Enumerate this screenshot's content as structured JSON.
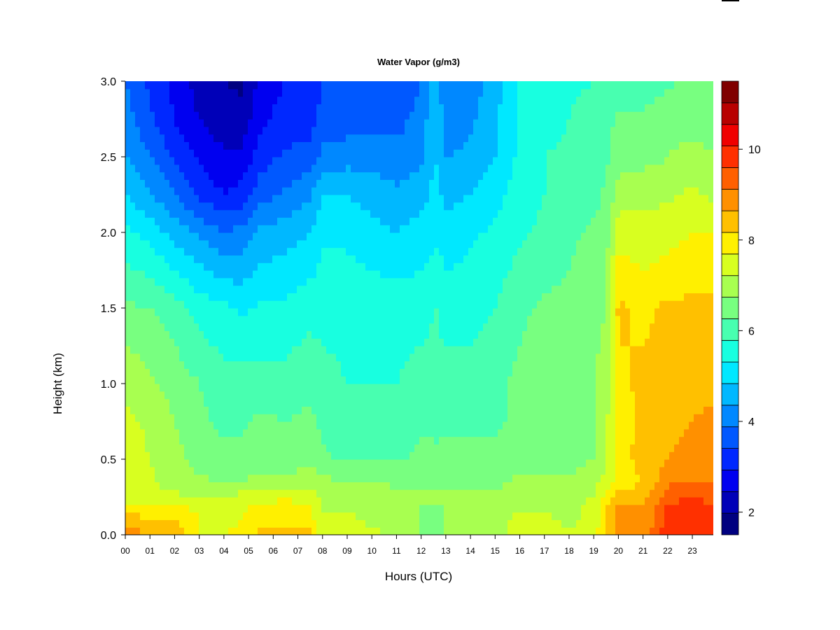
{
  "chart_data": {
    "type": "heatmap",
    "title": "Water Vapor (g/m3)",
    "xlabel": "Hours (UTC)",
    "ylabel": "Height (km)",
    "x_ticks": [
      "00",
      "01",
      "02",
      "03",
      "04",
      "05",
      "06",
      "07",
      "08",
      "09",
      "10",
      "11",
      "12",
      "13",
      "14",
      "15",
      "16",
      "17",
      "18",
      "19",
      "20",
      "21",
      "22",
      "23"
    ],
    "x_range": [
      0,
      23.85
    ],
    "y_ticks": [
      "0.0",
      "0.5",
      "1.0",
      "1.5",
      "2.0",
      "2.5",
      "3.0"
    ],
    "y_range": [
      0,
      3.0
    ],
    "colorbar": {
      "ticks": [
        "2",
        "4",
        "6",
        "8",
        "10"
      ],
      "range": [
        1.5,
        11.5
      ],
      "level_step": 0.5,
      "colors": [
        "#000080",
        "#0000B8",
        "#0000F0",
        "#0028FF",
        "#0058FF",
        "#0088FF",
        "#00B8FF",
        "#00E8FF",
        "#18FFE0",
        "#48FFB0",
        "#78FF80",
        "#A8FF50",
        "#D8FF20",
        "#FFF000",
        "#FFC000",
        "#FF9000",
        "#FF6000",
        "#FF3000",
        "#F00000",
        "#B80000",
        "#800000"
      ]
    },
    "grid": false,
    "heights_km": [
      0.0,
      0.1,
      0.2,
      0.3,
      0.4,
      0.5,
      0.75,
      1.0,
      1.5,
      2.0,
      2.25,
      2.5,
      2.75,
      3.0
    ],
    "hours": [
      0,
      1,
      2,
      3,
      4,
      4.7,
      5.5,
      6.5,
      7.5,
      8,
      9,
      10,
      11,
      12,
      12.6,
      13,
      14,
      15,
      16,
      17,
      18,
      19,
      19.5,
      20,
      21,
      22,
      23,
      23.85
    ],
    "values_g_m3": [
      [
        9.2,
        8.8,
        8.0,
        7.6,
        7.6,
        7.8,
        7.6,
        7.4,
        6.6,
        5.6,
        5.0,
        4.5,
        4.2,
        4.0
      ],
      [
        9.0,
        8.6,
        8.0,
        7.6,
        7.6,
        7.5,
        7.4,
        7.1,
        6.5,
        5.3,
        4.6,
        4.0,
        3.6,
        3.4
      ],
      [
        8.8,
        8.6,
        8.0,
        7.4,
        7.2,
        7.2,
        7.0,
        6.8,
        6.2,
        4.8,
        4.0,
        3.4,
        3.0,
        2.8
      ],
      [
        8.0,
        8.0,
        7.8,
        7.2,
        7.0,
        6.8,
        6.6,
        6.5,
        5.8,
        4.4,
        3.4,
        2.9,
        2.5,
        2.3
      ],
      [
        8.0,
        7.8,
        7.6,
        7.2,
        6.8,
        6.6,
        6.4,
        6.2,
        5.6,
        4.0,
        3.0,
        2.6,
        2.2,
        2.0
      ],
      [
        8.2,
        8.0,
        7.9,
        7.4,
        6.8,
        6.6,
        6.4,
        6.2,
        5.4,
        4.2,
        3.2,
        2.6,
        2.2,
        1.9
      ],
      [
        8.6,
        8.4,
        8.0,
        7.4,
        7.0,
        6.8,
        6.6,
        6.2,
        5.6,
        4.6,
        3.8,
        3.3,
        2.9,
        2.7
      ],
      [
        8.8,
        8.4,
        8.2,
        7.6,
        7.0,
        6.6,
        6.5,
        6.2,
        5.6,
        4.8,
        4.1,
        3.6,
        3.2,
        3.0
      ],
      [
        8.6,
        8.2,
        8.0,
        7.6,
        7.2,
        6.8,
        6.6,
        6.4,
        5.8,
        5.0,
        4.4,
        3.7,
        3.3,
        3.2
      ],
      [
        7.8,
        7.6,
        7.4,
        7.2,
        7.0,
        6.6,
        6.4,
        6.2,
        5.8,
        5.4,
        5.0,
        4.2,
        3.6,
        3.6
      ],
      [
        7.8,
        7.6,
        7.4,
        7.2,
        6.8,
        6.4,
        6.2,
        6.0,
        5.8,
        5.4,
        5.0,
        4.3,
        3.7,
        3.5
      ],
      [
        7.6,
        7.4,
        7.3,
        7.2,
        6.8,
        6.4,
        6.2,
        6.0,
        5.8,
        5.2,
        4.8,
        4.3,
        3.8,
        3.5
      ],
      [
        7.4,
        7.2,
        7.2,
        7.0,
        6.8,
        6.4,
        6.2,
        6.0,
        5.8,
        5.0,
        4.6,
        4.2,
        3.8,
        3.6
      ],
      [
        7.0,
        7.0,
        7.0,
        7.0,
        6.8,
        6.6,
        6.4,
        6.2,
        5.8,
        5.2,
        4.8,
        4.4,
        4.2,
        4.0
      ],
      [
        6.8,
        6.8,
        7.0,
        7.0,
        6.8,
        6.6,
        6.4,
        6.2,
        6.0,
        5.4,
        5.2,
        5.0,
        5.0,
        4.8
      ],
      [
        7.0,
        7.0,
        7.0,
        7.0,
        6.8,
        6.6,
        6.4,
        6.2,
        5.8,
        5.2,
        4.8,
        4.5,
        4.2,
        4.0
      ],
      [
        7.2,
        7.2,
        7.2,
        7.0,
        6.8,
        6.6,
        6.4,
        6.2,
        5.8,
        5.4,
        5.0,
        4.6,
        4.4,
        4.2
      ],
      [
        7.4,
        7.4,
        7.2,
        7.0,
        6.8,
        6.6,
        6.4,
        6.4,
        6.0,
        5.6,
        5.3,
        5.0,
        4.9,
        4.8
      ],
      [
        7.6,
        7.6,
        7.4,
        7.2,
        7.0,
        6.8,
        6.6,
        6.6,
        6.4,
        5.9,
        5.8,
        5.6,
        5.6,
        5.5
      ],
      [
        7.6,
        7.6,
        7.4,
        7.2,
        7.0,
        6.8,
        6.8,
        6.8,
        6.6,
        6.1,
        6.0,
        6.0,
        5.8,
        5.7
      ],
      [
        7.6,
        7.4,
        7.4,
        7.2,
        7.0,
        6.8,
        6.8,
        6.8,
        6.6,
        6.4,
        6.1,
        6.1,
        6.0,
        5.9
      ],
      [
        7.8,
        7.6,
        7.6,
        7.4,
        7.2,
        7.0,
        7.0,
        7.0,
        6.8,
        6.6,
        6.3,
        6.3,
        6.2,
        6.0
      ],
      [
        8.6,
        8.6,
        8.4,
        8.0,
        7.6,
        7.6,
        7.4,
        7.2,
        7.0,
        6.8,
        6.6,
        6.4,
        6.3,
        6.2
      ],
      [
        9.2,
        9.2,
        9.0,
        8.4,
        8.0,
        8.2,
        8.2,
        8.4,
        8.6,
        7.8,
        7.2,
        6.8,
        6.6,
        6.2
      ],
      [
        9.2,
        9.0,
        9.0,
        8.6,
        8.6,
        8.8,
        8.6,
        8.6,
        8.4,
        7.6,
        7.4,
        6.8,
        6.6,
        6.2
      ],
      [
        10.4,
        10.2,
        10.0,
        9.6,
        9.2,
        9.0,
        8.8,
        8.6,
        8.6,
        7.8,
        7.4,
        7.0,
        6.8,
        6.4
      ],
      [
        10.2,
        10.4,
        10.2,
        9.8,
        9.4,
        9.2,
        9.0,
        8.8,
        8.6,
        8.0,
        7.6,
        7.2,
        6.8,
        6.6
      ],
      [
        10.0,
        10.2,
        10.0,
        9.6,
        9.4,
        9.4,
        9.2,
        8.8,
        8.6,
        8.0,
        7.4,
        7.0,
        6.8,
        6.6
      ]
    ]
  }
}
